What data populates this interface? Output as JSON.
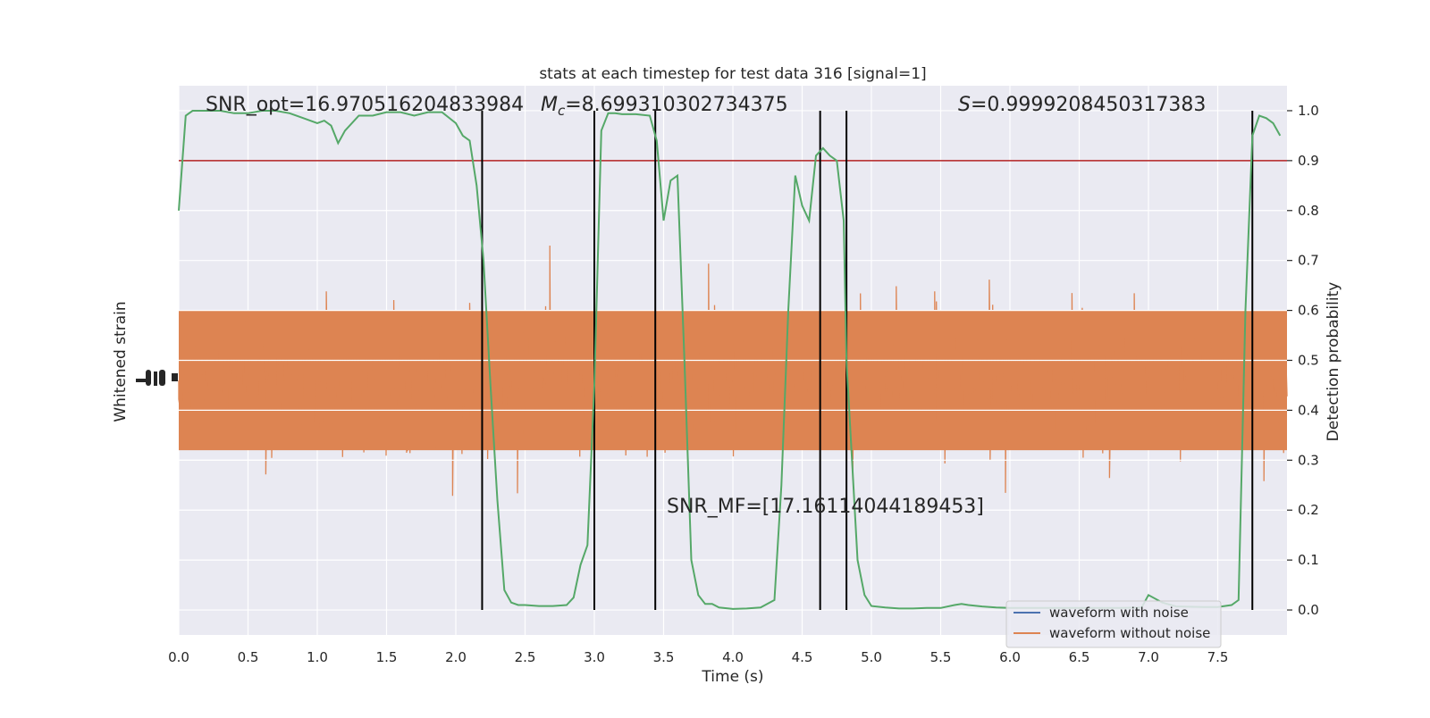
{
  "chart_data": {
    "type": "line",
    "title": "stats at each timestep for test data 316 [signal=1]",
    "xlabel": "Time (s)",
    "ylabel_left": "Whitened strain",
    "ylabel_right": "Detection probability",
    "xlim": [
      0.0,
      8.0
    ],
    "ylim_right": [
      -0.05,
      1.05
    ],
    "x_ticks": [
      0.0,
      0.5,
      1.0,
      1.5,
      2.0,
      2.5,
      3.0,
      3.5,
      4.0,
      4.5,
      5.0,
      5.5,
      6.0,
      6.5,
      7.0,
      7.5
    ],
    "x_tick_labels": [
      "0.0",
      "0.5",
      "1.0",
      "1.5",
      "2.0",
      "2.5",
      "3.0",
      "3.5",
      "4.0",
      "4.5",
      "5.0",
      "5.5",
      "6.0",
      "6.5",
      "7.0",
      "7.5"
    ],
    "y_ticks_right": [
      0.0,
      0.1,
      0.2,
      0.3,
      0.4,
      0.5,
      0.6,
      0.7,
      0.8,
      0.9,
      1.0
    ],
    "y_tick_labels_right": [
      "0.0",
      "0.1",
      "0.2",
      "0.3",
      "0.4",
      "0.5",
      "0.6",
      "0.7",
      "0.8",
      "0.9",
      "1.0"
    ],
    "threshold": 0.9,
    "vertical_lines": [
      2.19,
      3.0,
      3.44,
      4.63,
      4.82,
      7.75
    ],
    "annotations": {
      "snr_opt": "SNR_opt=16.970516204833984",
      "mc_prefix": "M",
      "mc_sub": "c",
      "mc_value": "=8.699310302734375",
      "s_prefix": "S",
      "s_value": "=0.9999208450317383",
      "snr_mf": "SNR_MF=[17.16114044189453]"
    },
    "legend": {
      "position": "lower-right",
      "entries": [
        {
          "label": "waveform with noise",
          "color": "#4c72b0"
        },
        {
          "label": "waveform without noise",
          "color": "#dd8452"
        }
      ]
    },
    "noise_band": {
      "center_prob": 0.46,
      "core_halfwidth": 0.14,
      "spike_extent": 0.38,
      "color": "#dd8452"
    },
    "series": [
      {
        "name": "detection probability",
        "color": "#55a868",
        "x": [
          0.0,
          0.05,
          0.1,
          0.2,
          0.3,
          0.4,
          0.5,
          0.6,
          0.7,
          0.8,
          0.9,
          1.0,
          1.05,
          1.1,
          1.15,
          1.2,
          1.3,
          1.4,
          1.5,
          1.6,
          1.7,
          1.8,
          1.9,
          2.0,
          2.05,
          2.1,
          2.15,
          2.2,
          2.25,
          2.3,
          2.35,
          2.4,
          2.45,
          2.5,
          2.6,
          2.7,
          2.8,
          2.85,
          2.9,
          2.95,
          3.0,
          3.05,
          3.1,
          3.15,
          3.2,
          3.3,
          3.4,
          3.45,
          3.5,
          3.55,
          3.6,
          3.65,
          3.7,
          3.75,
          3.8,
          3.85,
          3.9,
          4.0,
          4.1,
          4.2,
          4.3,
          4.35,
          4.4,
          4.45,
          4.5,
          4.55,
          4.6,
          4.65,
          4.7,
          4.75,
          4.8,
          4.82,
          4.9,
          4.95,
          5.0,
          5.1,
          5.2,
          5.3,
          5.4,
          5.5,
          5.6,
          5.65,
          5.7,
          5.8,
          5.9,
          6.0,
          6.2,
          6.5,
          6.8,
          6.95,
          7.0,
          7.1,
          7.2,
          7.4,
          7.5,
          7.6,
          7.65,
          7.7,
          7.75,
          7.8,
          7.85,
          7.9,
          7.95
        ],
        "y": [
          0.8,
          0.99,
          1.0,
          1.0,
          1.0,
          0.995,
          0.995,
          1.0,
          1.0,
          0.995,
          0.985,
          0.975,
          0.98,
          0.97,
          0.935,
          0.96,
          0.99,
          0.99,
          0.997,
          0.997,
          0.99,
          0.997,
          0.997,
          0.975,
          0.95,
          0.94,
          0.85,
          0.7,
          0.45,
          0.22,
          0.04,
          0.015,
          0.01,
          0.01,
          0.008,
          0.008,
          0.01,
          0.025,
          0.09,
          0.13,
          0.45,
          0.96,
          0.995,
          0.995,
          0.993,
          0.993,
          0.99,
          0.94,
          0.78,
          0.86,
          0.87,
          0.5,
          0.1,
          0.03,
          0.012,
          0.012,
          0.005,
          0.002,
          0.003,
          0.005,
          0.02,
          0.25,
          0.6,
          0.87,
          0.81,
          0.78,
          0.91,
          0.925,
          0.91,
          0.9,
          0.78,
          0.5,
          0.1,
          0.03,
          0.008,
          0.005,
          0.003,
          0.003,
          0.004,
          0.004,
          0.01,
          0.012,
          0.01,
          0.007,
          0.005,
          0.004,
          0.004,
          0.004,
          0.004,
          0.005,
          0.03,
          0.015,
          0.007,
          0.006,
          0.006,
          0.01,
          0.02,
          0.6,
          0.95,
          0.99,
          0.985,
          0.975,
          0.95
        ]
      }
    ]
  }
}
